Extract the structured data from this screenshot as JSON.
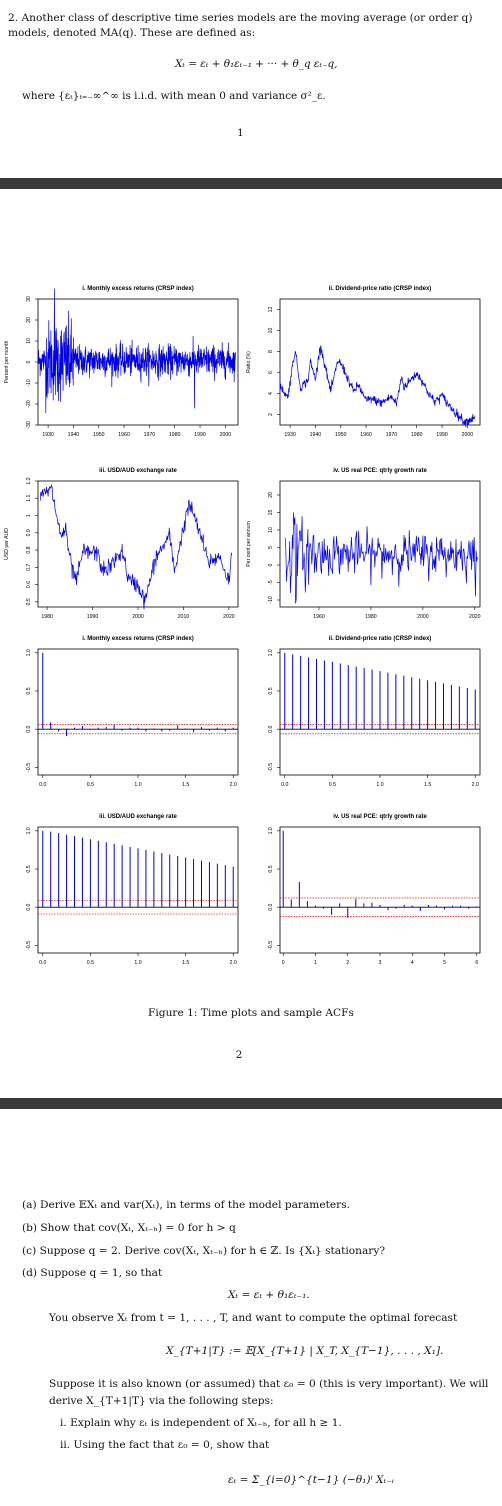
{
  "page1": {
    "intro": "2.  Another class of descriptive time series models are the moving average (or order q) models, denoted MA(q).  These are defined as:",
    "equation": "Xₜ = εₜ + θ₁εₜ₋₁ + ··· + θ_q εₜ₋q,",
    "where": "where {εₜ}ₜ₌₋∞^∞ is i.i.d. with mean 0 and variance σ²_ε.",
    "page_number": "1"
  },
  "figure": {
    "caption": "Figure 1: Time plots and sample ACFs",
    "page_number": "2"
  },
  "chart_data": [
    {
      "type": "line",
      "title": "i. Monthly excess returns (CRSP index)",
      "ylabel": "Percent per month",
      "xlim": [
        1926,
        2005
      ],
      "ylim": [
        -30,
        30
      ],
      "xticks": [
        1930,
        1940,
        1950,
        1960,
        1970,
        1980,
        1990,
        2000
      ],
      "yticks": [
        -30,
        -20,
        -10,
        0,
        10,
        20,
        30
      ],
      "grid": false,
      "series": [
        {
          "generator": "monthly_returns"
        }
      ]
    },
    {
      "type": "line",
      "title": "ii. Dividend-price ratio (CRSP index)",
      "ylabel": "Ratio (%)",
      "xlim": [
        1926,
        2005
      ],
      "ylim": [
        1,
        13
      ],
      "xticks": [
        1930,
        1940,
        1950,
        1960,
        1970,
        1980,
        1990,
        2000
      ],
      "yticks": [
        2,
        4,
        6,
        8,
        10,
        12
      ],
      "anchors": [
        [
          1926,
          4.8
        ],
        [
          1929,
          3.6
        ],
        [
          1932,
          8.2
        ],
        [
          1934,
          4.6
        ],
        [
          1937,
          5.2
        ],
        [
          1938,
          7.0
        ],
        [
          1940,
          5.4
        ],
        [
          1942,
          8.6
        ],
        [
          1946,
          4.2
        ],
        [
          1949,
          7.2
        ],
        [
          1951,
          6.4
        ],
        [
          1955,
          4.2
        ],
        [
          1957,
          4.8
        ],
        [
          1960,
          3.3
        ],
        [
          1962,
          3.5
        ],
        [
          1966,
          3.1
        ],
        [
          1970,
          3.7
        ],
        [
          1972,
          3.0
        ],
        [
          1974,
          5.6
        ],
        [
          1975,
          4.6
        ],
        [
          1978,
          5.4
        ],
        [
          1980,
          5.9
        ],
        [
          1982,
          5.3
        ],
        [
          1984,
          4.3
        ],
        [
          1987,
          3.2
        ],
        [
          1990,
          3.8
        ],
        [
          1993,
          2.8
        ],
        [
          1996,
          2.0
        ],
        [
          1999,
          1.3
        ],
        [
          2002,
          1.6
        ],
        [
          2003,
          1.9
        ]
      ]
    },
    {
      "type": "line",
      "title": "iii. USD/AUD exchange rate",
      "ylabel": "USD per AUD",
      "xlim": [
        1978,
        2022
      ],
      "ylim": [
        0.47,
        1.2
      ],
      "xticks": [
        1980,
        1990,
        2000,
        2010,
        2020
      ],
      "yticks": [
        0.5,
        0.6,
        0.7,
        0.8,
        0.9,
        1.0,
        1.1,
        1.2
      ],
      "anchors": [
        [
          1978.5,
          1.1
        ],
        [
          1979.5,
          1.13
        ],
        [
          1981,
          1.15
        ],
        [
          1983,
          0.88
        ],
        [
          1984,
          0.92
        ],
        [
          1985.5,
          0.68
        ],
        [
          1986.5,
          0.62
        ],
        [
          1988,
          0.8
        ],
        [
          1989,
          0.78
        ],
        [
          1990,
          0.79
        ],
        [
          1991,
          0.78
        ],
        [
          1992,
          0.7
        ],
        [
          1993,
          0.68
        ],
        [
          1995,
          0.74
        ],
        [
          1996.5,
          0.8
        ],
        [
          1998,
          0.62
        ],
        [
          2000,
          0.6
        ],
        [
          2001.5,
          0.5
        ],
        [
          2003,
          0.66
        ],
        [
          2004,
          0.76
        ],
        [
          2007,
          0.88
        ],
        [
          2008,
          0.68
        ],
        [
          2009,
          0.8
        ],
        [
          2011,
          1.05
        ],
        [
          2012,
          1.03
        ],
        [
          2013,
          0.94
        ],
        [
          2014,
          0.87
        ],
        [
          2015.5,
          0.72
        ],
        [
          2016,
          0.74
        ],
        [
          2018,
          0.76
        ],
        [
          2019,
          0.69
        ],
        [
          2020,
          0.62
        ],
        [
          2020.6,
          0.77
        ]
      ]
    },
    {
      "type": "line",
      "title": "iv. US real PCE: qtrly growth rate",
      "ylabel": "Per cent per annum",
      "xlim": [
        1945,
        2022
      ],
      "ylim": [
        -12,
        24
      ],
      "xticks": [
        1960,
        1980,
        2000,
        2020
      ],
      "yticks": [
        -10,
        -5,
        0,
        5,
        10,
        15,
        20
      ],
      "grid": false,
      "series": [
        {
          "generator": "pce_growth"
        }
      ]
    },
    {
      "type": "bar",
      "title": "i. Monthly excess returns (CRSP index)",
      "xlim": [
        -0.05,
        2.05
      ],
      "ylim": [
        -0.6,
        1.05
      ],
      "xticks": [
        0.0,
        0.5,
        1.0,
        1.5,
        2.0
      ],
      "yticks": [
        -0.5,
        0.0,
        0.5,
        1.0
      ],
      "xtick_labels": [
        "0.0",
        "0.5",
        "1.0",
        "1.5",
        "2.0"
      ],
      "band": 0.06,
      "lags": [
        0,
        0.0833,
        0.1667,
        0.25,
        0.3333,
        0.4167,
        0.5,
        0.5833,
        0.6667,
        0.75,
        0.8333,
        0.9167,
        1.0,
        1.0833,
        1.1667,
        1.25,
        1.3333,
        1.4167,
        1.5,
        1.5833,
        1.6667,
        1.75,
        1.8333,
        1.9167,
        2.0
      ],
      "values": [
        1.0,
        0.09,
        -0.03,
        -0.09,
        0.02,
        0.04,
        -0.01,
        0.02,
        0.03,
        0.06,
        -0.02,
        0.02,
        0.02,
        -0.03,
        0.01,
        -0.03,
        -0.02,
        0.05,
        0.01,
        -0.04,
        0.03,
        -0.02,
        0.02,
        -0.03,
        0.02
      ]
    },
    {
      "type": "bar",
      "title": "ii. Dividend-price ratio (CRSP index)",
      "xlim": [
        -0.05,
        2.05
      ],
      "ylim": [
        -0.6,
        1.05
      ],
      "xticks": [
        0.0,
        0.5,
        1.0,
        1.5,
        2.0
      ],
      "yticks": [
        -0.5,
        0.0,
        0.5,
        1.0
      ],
      "xtick_labels": [
        "0.0",
        "0.5",
        "1.0",
        "1.5",
        "2.0"
      ],
      "band": 0.06,
      "lags": [
        0,
        0.0833,
        0.1667,
        0.25,
        0.3333,
        0.4167,
        0.5,
        0.5833,
        0.6667,
        0.75,
        0.8333,
        0.9167,
        1.0,
        1.0833,
        1.1667,
        1.25,
        1.3333,
        1.4167,
        1.5,
        1.5833,
        1.6667,
        1.75,
        1.8333,
        1.9167,
        2.0
      ],
      "values": [
        1.0,
        0.98,
        0.96,
        0.94,
        0.92,
        0.9,
        0.88,
        0.86,
        0.84,
        0.82,
        0.8,
        0.78,
        0.76,
        0.74,
        0.72,
        0.7,
        0.68,
        0.66,
        0.64,
        0.62,
        0.6,
        0.58,
        0.56,
        0.54,
        0.52
      ]
    },
    {
      "type": "bar",
      "title": "iii. USD/AUD exchange rate",
      "xlim": [
        -0.05,
        2.05
      ],
      "ylim": [
        -0.6,
        1.05
      ],
      "xticks": [
        0.0,
        0.5,
        1.0,
        1.5,
        2.0
      ],
      "yticks": [
        -0.5,
        0.0,
        0.5,
        1.0
      ],
      "xtick_labels": [
        "0.0",
        "0.5",
        "1.0",
        "1.5",
        "2.0"
      ],
      "band": 0.09,
      "lags": [
        0,
        0.0833,
        0.1667,
        0.25,
        0.3333,
        0.4167,
        0.5,
        0.5833,
        0.6667,
        0.75,
        0.8333,
        0.9167,
        1.0,
        1.0833,
        1.1667,
        1.25,
        1.3333,
        1.4167,
        1.5,
        1.5833,
        1.6667,
        1.75,
        1.8333,
        1.9167,
        2.0
      ],
      "values": [
        1.0,
        0.99,
        0.97,
        0.95,
        0.93,
        0.91,
        0.89,
        0.87,
        0.85,
        0.83,
        0.81,
        0.79,
        0.77,
        0.75,
        0.73,
        0.71,
        0.69,
        0.67,
        0.65,
        0.63,
        0.61,
        0.59,
        0.57,
        0.55,
        0.53
      ]
    },
    {
      "type": "bar",
      "title": "iv. US real PCE: qtrly growth rate",
      "xlim": [
        -0.1,
        6.1
      ],
      "ylim": [
        -0.6,
        1.05
      ],
      "xticks": [
        0,
        1,
        2,
        3,
        4,
        5,
        6
      ],
      "yticks": [
        -0.5,
        0.0,
        0.5,
        1.0
      ],
      "xtick_labels": [
        "0",
        "1",
        "2",
        "3",
        "4",
        "5",
        "6"
      ],
      "band": 0.12,
      "lags": [
        0,
        0.25,
        0.5,
        0.75,
        1.0,
        1.25,
        1.5,
        1.75,
        2.0,
        2.25,
        2.5,
        2.75,
        3.0,
        3.25,
        3.5,
        3.75,
        4.0,
        4.25,
        4.5,
        4.75,
        5.0,
        5.25,
        5.5,
        5.75,
        6.0
      ],
      "values": [
        1.0,
        0.1,
        0.33,
        0.08,
        0.02,
        -0.02,
        -0.1,
        0.05,
        -0.14,
        0.11,
        0.05,
        0.06,
        0.03,
        -0.04,
        -0.02,
        0.03,
        0.02,
        -0.05,
        0.03,
        0.02,
        -0.03,
        0.02,
        0.02,
        -0.02,
        0.01
      ]
    }
  ],
  "questions": {
    "a": "(a)  Derive 𝔼Xₜ and var(Xₜ), in terms of the model parameters.",
    "b": "(b)  Show that cov(Xₜ, Xₜ₋ₕ) = 0 for h > q",
    "c": "(c)  Suppose q = 2. Derive cov(Xₜ, Xₜ₋ₕ) for h ∈ ℤ. Is {Xₜ} stationary?",
    "d": "(d)  Suppose q = 1, so that",
    "d_eq": "Xₜ = εₜ + θ₁εₜ₋₁.",
    "d_text": "You observe Xₜ from t = 1, . . . , T, and want to compute the optimal forecast",
    "d_eq2": "X_{T+1|T} := 𝔼[X_{T+1} | X_T, X_{T−1}, . . . , X₁].",
    "d_text2a": "Suppose it is also known (or assumed) that ε₀ = 0 (this is very important). We will",
    "d_text2b": "derive X_{T+1|T} via the following steps:",
    "i": "i.  Explain why εₜ is independent of Xₜ₋ₕ, for all h ≥ 1.",
    "ii": "ii.  Using the fact that ε₀ = 0, show that",
    "ii_eq": "εₜ = Σ_{i=0}^{t−1} (−θ₁)ⁱ Xₜ₋ᵢ"
  },
  "colors": {
    "line": "#0000e6",
    "band": "#e60000",
    "axis": "#000000",
    "rule": "#3a3a3a"
  }
}
